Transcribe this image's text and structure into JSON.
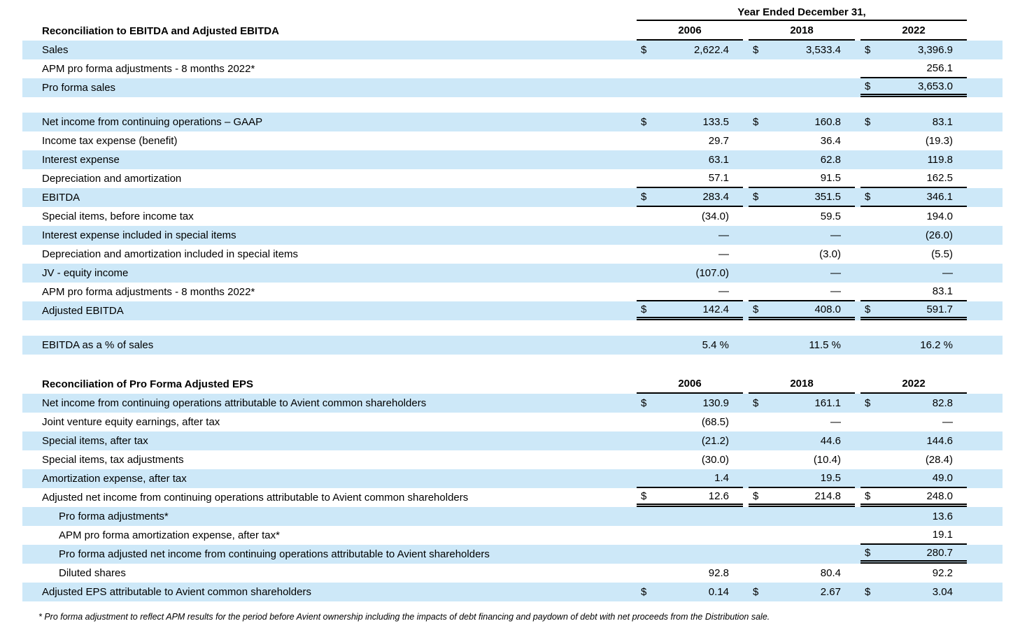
{
  "table_header": {
    "group_label": "Year Ended December 31,",
    "years": [
      "2006",
      "2018",
      "2022"
    ]
  },
  "colors": {
    "row_highlight": "#CDE8F8",
    "rule": "#000000",
    "text": "#000000"
  },
  "sections": [
    {
      "title": "Reconciliation to EBITDA and Adjusted EBITDA",
      "show_group_header": true,
      "rows": [
        {
          "label": "Sales",
          "shaded": true,
          "indent": 0,
          "gap_after": 0,
          "cells": [
            {
              "d": "$",
              "v": "2,622.4",
              "u": ""
            },
            {
              "d": "$",
              "v": "3,533.4",
              "u": ""
            },
            {
              "d": "$",
              "v": "3,396.9",
              "u": ""
            }
          ]
        },
        {
          "label": "APM pro forma adjustments - 8 months 2022*",
          "shaded": false,
          "indent": 0,
          "gap_after": 0,
          "cells": [
            {
              "d": "",
              "v": "",
              "u": ""
            },
            {
              "d": "",
              "v": "",
              "u": ""
            },
            {
              "d": "",
              "v": "256.1",
              "u": "s"
            }
          ]
        },
        {
          "label": "Pro forma sales",
          "shaded": true,
          "indent": 0,
          "gap_after": 22,
          "cells": [
            {
              "d": "",
              "v": "",
              "u": ""
            },
            {
              "d": "",
              "v": "",
              "u": ""
            },
            {
              "d": "$",
              "v": "3,653.0",
              "u": "d"
            }
          ]
        },
        {
          "label": "Net income from continuing operations – GAAP",
          "shaded": true,
          "indent": 0,
          "gap_after": 0,
          "cells": [
            {
              "d": "$",
              "v": "133.5",
              "u": ""
            },
            {
              "d": "$",
              "v": "160.8",
              "u": ""
            },
            {
              "d": "$",
              "v": "83.1",
              "u": ""
            }
          ]
        },
        {
          "label": "Income tax expense (benefit)",
          "shaded": false,
          "indent": 0,
          "gap_after": 0,
          "cells": [
            {
              "d": "",
              "v": "29.7",
              "u": ""
            },
            {
              "d": "",
              "v": "36.4",
              "u": ""
            },
            {
              "d": "",
              "v": "(19.3)",
              "u": ""
            }
          ]
        },
        {
          "label": "Interest expense",
          "shaded": true,
          "indent": 0,
          "gap_after": 0,
          "cells": [
            {
              "d": "",
              "v": "63.1",
              "u": ""
            },
            {
              "d": "",
              "v": "62.8",
              "u": ""
            },
            {
              "d": "",
              "v": "119.8",
              "u": ""
            }
          ]
        },
        {
          "label": "Depreciation and amortization",
          "shaded": false,
          "indent": 0,
          "gap_after": 0,
          "cells": [
            {
              "d": "",
              "v": "57.1",
              "u": "s"
            },
            {
              "d": "",
              "v": "91.5",
              "u": "s"
            },
            {
              "d": "",
              "v": "162.5",
              "u": "s"
            }
          ]
        },
        {
          "label": "EBITDA",
          "shaded": true,
          "indent": 0,
          "gap_after": 0,
          "cells": [
            {
              "d": "$",
              "v": "283.4",
              "u": "s"
            },
            {
              "d": "$",
              "v": "351.5",
              "u": "s"
            },
            {
              "d": "$",
              "v": "346.1",
              "u": "s"
            }
          ]
        },
        {
          "label": "Special items, before income tax",
          "shaded": false,
          "indent": 0,
          "gap_after": 0,
          "cells": [
            {
              "d": "",
              "v": "(34.0)",
              "u": ""
            },
            {
              "d": "",
              "v": "59.5",
              "u": ""
            },
            {
              "d": "",
              "v": "194.0",
              "u": ""
            }
          ]
        },
        {
          "label": "Interest expense included in special items",
          "shaded": true,
          "indent": 0,
          "gap_after": 0,
          "cells": [
            {
              "d": "",
              "v": "—",
              "u": ""
            },
            {
              "d": "",
              "v": "—",
              "u": ""
            },
            {
              "d": "",
              "v": "(26.0)",
              "u": ""
            }
          ]
        },
        {
          "label": "Depreciation and amortization included in special items",
          "shaded": false,
          "indent": 0,
          "gap_after": 0,
          "cells": [
            {
              "d": "",
              "v": "—",
              "u": ""
            },
            {
              "d": "",
              "v": "(3.0)",
              "u": ""
            },
            {
              "d": "",
              "v": "(5.5)",
              "u": ""
            }
          ]
        },
        {
          "label": "JV - equity income",
          "shaded": true,
          "indent": 0,
          "gap_after": 0,
          "cells": [
            {
              "d": "",
              "v": "(107.0)",
              "u": ""
            },
            {
              "d": "",
              "v": "—",
              "u": ""
            },
            {
              "d": "",
              "v": "—",
              "u": ""
            }
          ]
        },
        {
          "label": "APM pro forma adjustments - 8 months 2022*",
          "shaded": false,
          "indent": 0,
          "gap_after": 0,
          "cells": [
            {
              "d": "",
              "v": "—",
              "u": "s"
            },
            {
              "d": "",
              "v": "—",
              "u": "s"
            },
            {
              "d": "",
              "v": "83.1",
              "u": "s"
            }
          ]
        },
        {
          "label": "Adjusted EBITDA",
          "shaded": true,
          "indent": 0,
          "gap_after": 22,
          "cells": [
            {
              "d": "$",
              "v": "142.4",
              "u": "d"
            },
            {
              "d": "$",
              "v": "408.0",
              "u": "d"
            },
            {
              "d": "$",
              "v": "591.7",
              "u": "d"
            }
          ]
        },
        {
          "label": "EBITDA as a % of sales",
          "shaded": true,
          "indent": 0,
          "gap_after": 28,
          "cells": [
            {
              "d": "",
              "v": "5.4 %",
              "u": ""
            },
            {
              "d": "",
              "v": "11.5 %",
              "u": ""
            },
            {
              "d": "",
              "v": "16.2 %",
              "u": ""
            }
          ]
        }
      ]
    },
    {
      "title": "Reconciliation of Pro Forma Adjusted EPS",
      "show_group_header": false,
      "rows": [
        {
          "label": "Net income from continuing operations attributable to Avient common shareholders",
          "shaded": true,
          "indent": 0,
          "gap_after": 0,
          "cells": [
            {
              "d": "$",
              "v": "130.9",
              "u": ""
            },
            {
              "d": "$",
              "v": "161.1",
              "u": ""
            },
            {
              "d": "$",
              "v": "82.8",
              "u": ""
            }
          ]
        },
        {
          "label": "Joint venture equity earnings, after tax",
          "shaded": false,
          "indent": 0,
          "gap_after": 0,
          "cells": [
            {
              "d": "",
              "v": "(68.5)",
              "u": ""
            },
            {
              "d": "",
              "v": "—",
              "u": ""
            },
            {
              "d": "",
              "v": "—",
              "u": ""
            }
          ]
        },
        {
          "label": "Special items, after tax",
          "shaded": true,
          "indent": 0,
          "gap_after": 0,
          "cells": [
            {
              "d": "",
              "v": "(21.2)",
              "u": ""
            },
            {
              "d": "",
              "v": "44.6",
              "u": ""
            },
            {
              "d": "",
              "v": "144.6",
              "u": ""
            }
          ]
        },
        {
          "label": "Special items, tax adjustments",
          "shaded": false,
          "indent": 0,
          "gap_after": 0,
          "cells": [
            {
              "d": "",
              "v": "(30.0)",
              "u": ""
            },
            {
              "d": "",
              "v": "(10.4)",
              "u": ""
            },
            {
              "d": "",
              "v": "(28.4)",
              "u": ""
            }
          ]
        },
        {
          "label": "Amortization expense, after tax",
          "shaded": true,
          "indent": 0,
          "gap_after": 0,
          "cells": [
            {
              "d": "",
              "v": "1.4",
              "u": "s"
            },
            {
              "d": "",
              "v": "19.5",
              "u": "s"
            },
            {
              "d": "",
              "v": "49.0",
              "u": "s"
            }
          ]
        },
        {
          "label": "Adjusted net income from continuing operations attributable to Avient common shareholders",
          "shaded": false,
          "indent": 0,
          "gap_after": 0,
          "cells": [
            {
              "d": "$",
              "v": "12.6",
              "u": "d"
            },
            {
              "d": "$",
              "v": "214.8",
              "u": "d"
            },
            {
              "d": "$",
              "v": "248.0",
              "u": "d"
            }
          ]
        },
        {
          "label": "Pro forma adjustments*",
          "shaded": true,
          "indent": 1,
          "gap_after": 0,
          "cells": [
            {
              "d": "",
              "v": "",
              "u": ""
            },
            {
              "d": "",
              "v": "",
              "u": ""
            },
            {
              "d": "",
              "v": "13.6",
              "u": ""
            }
          ]
        },
        {
          "label": "APM pro forma amortization expense, after tax*",
          "shaded": false,
          "indent": 1,
          "gap_after": 0,
          "cells": [
            {
              "d": "",
              "v": "",
              "u": ""
            },
            {
              "d": "",
              "v": "",
              "u": ""
            },
            {
              "d": "",
              "v": "19.1",
              "u": "s"
            }
          ]
        },
        {
          "label": "Pro forma adjusted net income from continuing operations attributable to Avient shareholders",
          "shaded": true,
          "indent": 1,
          "gap_after": 0,
          "cells": [
            {
              "d": "",
              "v": "",
              "u": ""
            },
            {
              "d": "",
              "v": "",
              "u": ""
            },
            {
              "d": "$",
              "v": "280.7",
              "u": "d"
            }
          ]
        },
        {
          "label": "Diluted shares",
          "shaded": false,
          "indent": 1,
          "gap_after": 0,
          "cells": [
            {
              "d": "",
              "v": "92.8",
              "u": ""
            },
            {
              "d": "",
              "v": "80.4",
              "u": ""
            },
            {
              "d": "",
              "v": "92.2",
              "u": ""
            }
          ]
        },
        {
          "label": "Adjusted EPS attributable to Avient common shareholders",
          "shaded": true,
          "indent": 0,
          "gap_after": 0,
          "cells": [
            {
              "d": "$",
              "v": "0.14",
              "u": ""
            },
            {
              "d": "$",
              "v": "2.67",
              "u": ""
            },
            {
              "d": "$",
              "v": "3.04",
              "u": ""
            }
          ]
        }
      ]
    }
  ],
  "footnote": "* Pro forma adjustment to reflect APM results for the period before Avient ownership including the impacts of debt financing and paydown of debt with net proceeds from the Distribution sale."
}
